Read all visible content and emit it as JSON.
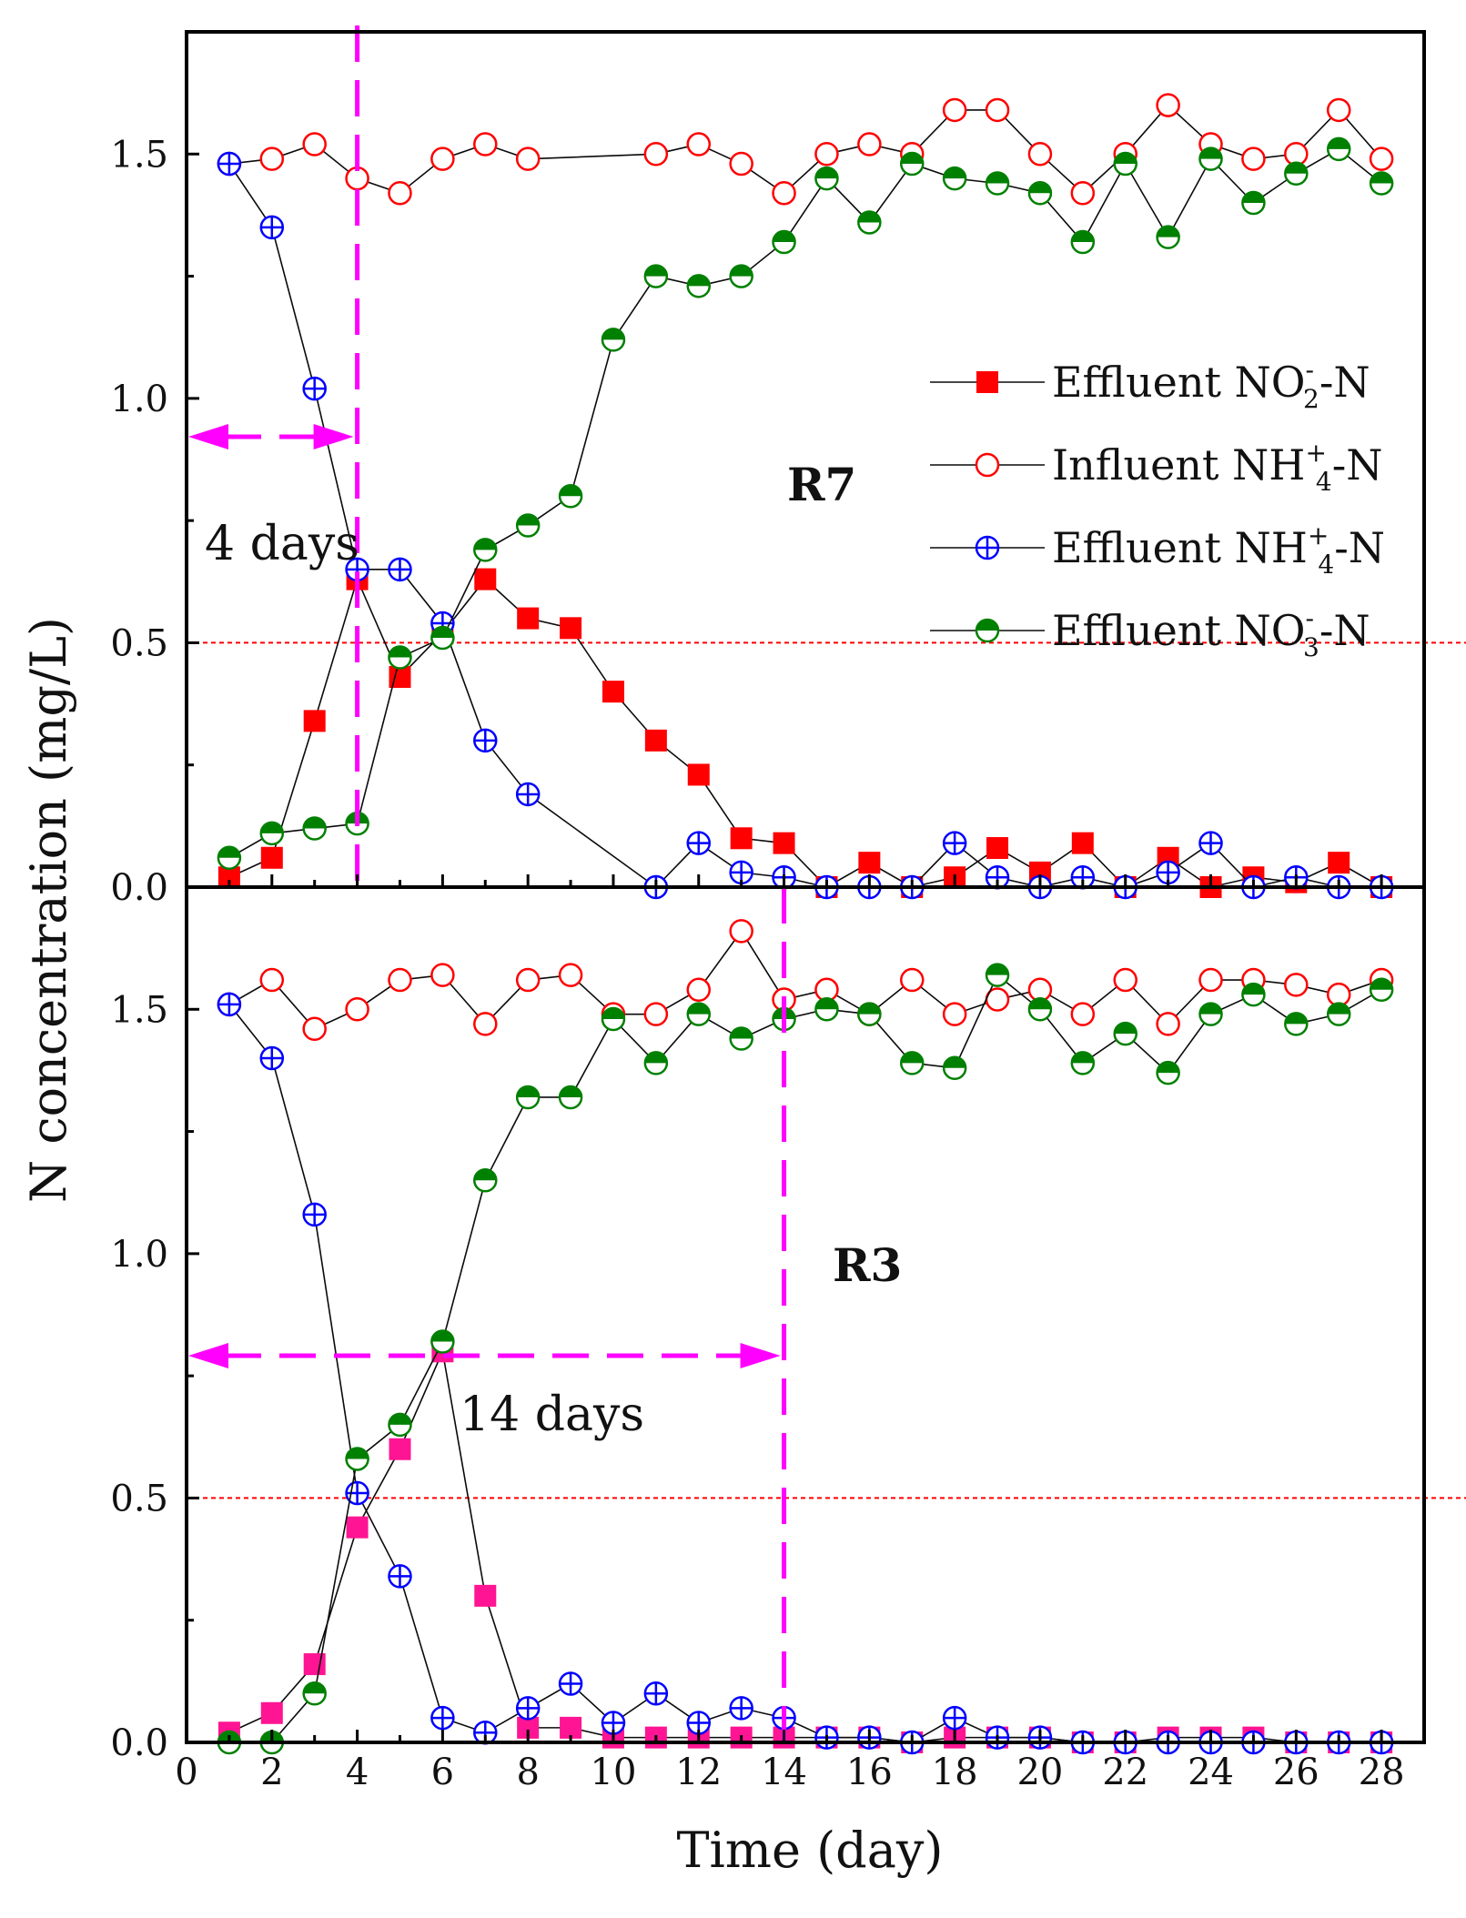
{
  "chart_data": {
    "type": "line",
    "xlabel": "Time (day)",
    "ylabel": "N concentration (mg/L)",
    "xlim": [
      0,
      29
    ],
    "ylim": [
      0,
      1.75
    ],
    "x_ticks": [
      "0",
      "2",
      "4",
      "6",
      "8",
      "10",
      "12",
      "14",
      "16",
      "18",
      "20",
      "22",
      "24",
      "26",
      "28"
    ],
    "y_ticks": [
      "0.0",
      "0.5",
      "1.0",
      "1.5"
    ],
    "threshold": 0.5,
    "x": [
      1,
      2,
      3,
      4,
      5,
      6,
      7,
      8,
      9,
      10,
      11,
      12,
      13,
      14,
      15,
      16,
      17,
      18,
      19,
      20,
      21,
      22,
      23,
      24,
      25,
      26,
      27,
      28
    ],
    "legend": {
      "placement": "right",
      "entries": [
        {
          "key": "effluent_no2",
          "prefix": "Effluent NO",
          "sub": "2",
          "sup": "-",
          "suffix": "-N"
        },
        {
          "key": "influent_nh4",
          "prefix": "Influent NH",
          "sub": "4",
          "sup": "+",
          "suffix": "-N"
        },
        {
          "key": "effluent_nh4",
          "prefix": "Effluent NH",
          "sub": "4",
          "sup": "+",
          "suffix": "-N"
        },
        {
          "key": "effluent_no3",
          "prefix": "Effluent NO",
          "sub": "3",
          "sup": "-",
          "suffix": "-N"
        }
      ]
    },
    "panels": [
      {
        "label": "R7",
        "startup_day": 4,
        "annotation": "4 days",
        "series": [
          {
            "key": "effluent_no2",
            "color": "#ff0000",
            "values": [
              0.02,
              0.06,
              0.34,
              0.63,
              0.43,
              0.52,
              0.63,
              0.55,
              0.53,
              0.4,
              0.3,
              0.23,
              0.1,
              0.09,
              0.0,
              0.05,
              0.0,
              0.02,
              0.08,
              0.03,
              0.09,
              0.0,
              0.06,
              0.0,
              0.02,
              0.01,
              0.05,
              0.0
            ]
          },
          {
            "key": "influent_nh4",
            "color": "#ff0000",
            "values": [
              1.48,
              1.49,
              1.52,
              1.45,
              1.42,
              1.49,
              1.52,
              1.49,
              null,
              null,
              1.5,
              1.52,
              1.48,
              1.42,
              1.5,
              1.52,
              1.5,
              1.59,
              1.59,
              1.5,
              1.42,
              1.5,
              1.6,
              1.52,
              1.49,
              1.5,
              1.59,
              1.49
            ]
          },
          {
            "key": "effluent_nh4",
            "color": "#0000ff",
            "values": [
              1.48,
              1.35,
              1.02,
              0.65,
              0.65,
              0.54,
              0.3,
              0.19,
              null,
              null,
              0.0,
              0.09,
              0.03,
              0.02,
              0.0,
              0.0,
              0.0,
              0.09,
              0.02,
              0.0,
              0.02,
              0.0,
              0.03,
              0.09,
              0.0,
              0.02,
              0.0,
              0.0
            ]
          },
          {
            "key": "effluent_no3",
            "color": "#008000",
            "values": [
              0.06,
              0.11,
              0.12,
              0.13,
              0.47,
              0.51,
              0.69,
              0.74,
              0.8,
              1.12,
              1.25,
              1.23,
              1.25,
              1.32,
              1.45,
              1.36,
              1.48,
              1.45,
              1.44,
              1.42,
              1.32,
              1.48,
              1.33,
              1.49,
              1.4,
              1.46,
              1.51,
              1.44
            ]
          }
        ]
      },
      {
        "label": "R3",
        "startup_day": 14,
        "annotation": "14 days",
        "series": [
          {
            "key": "effluent_no2",
            "color": "#ff1493",
            "values": [
              0.02,
              0.06,
              0.16,
              0.44,
              0.6,
              0.8,
              0.3,
              0.03,
              0.03,
              0.01,
              0.01,
              0.01,
              0.01,
              0.01,
              0.01,
              0.01,
              0.0,
              0.01,
              0.01,
              0.01,
              0.0,
              0.0,
              0.01,
              0.01,
              0.01,
              0.0,
              0.0,
              0.0
            ]
          },
          {
            "key": "influent_nh4",
            "color": "#ff0000",
            "values": [
              1.51,
              1.56,
              1.46,
              1.5,
              1.56,
              1.57,
              1.47,
              1.56,
              1.57,
              1.49,
              1.49,
              1.54,
              1.66,
              1.52,
              1.54,
              1.49,
              1.56,
              1.49,
              1.52,
              1.54,
              1.49,
              1.56,
              1.47,
              1.56,
              1.56,
              1.55,
              1.53,
              1.56
            ]
          },
          {
            "key": "effluent_nh4",
            "color": "#0000ff",
            "values": [
              1.51,
              1.4,
              1.08,
              0.51,
              0.34,
              0.05,
              0.02,
              0.07,
              0.12,
              0.04,
              0.1,
              0.04,
              0.07,
              0.05,
              0.01,
              0.01,
              0.0,
              0.05,
              0.01,
              0.01,
              0.0,
              0.0,
              0.0,
              0.0,
              0.0,
              0.0,
              0.0,
              0.0
            ]
          },
          {
            "key": "effluent_no3",
            "color": "#008000",
            "values": [
              0.0,
              0.0,
              0.1,
              0.58,
              0.65,
              0.82,
              1.15,
              1.32,
              1.32,
              1.48,
              1.39,
              1.49,
              1.44,
              1.48,
              1.5,
              1.49,
              1.39,
              1.38,
              1.57,
              1.5,
              1.39,
              1.45,
              1.37,
              1.49,
              1.53,
              1.47,
              1.49,
              1.54
            ]
          }
        ]
      }
    ]
  },
  "colors": {
    "marker_line": "#0a0a0a",
    "startup_marker": "#ff00ff",
    "threshold_line": "#ff0000"
  }
}
